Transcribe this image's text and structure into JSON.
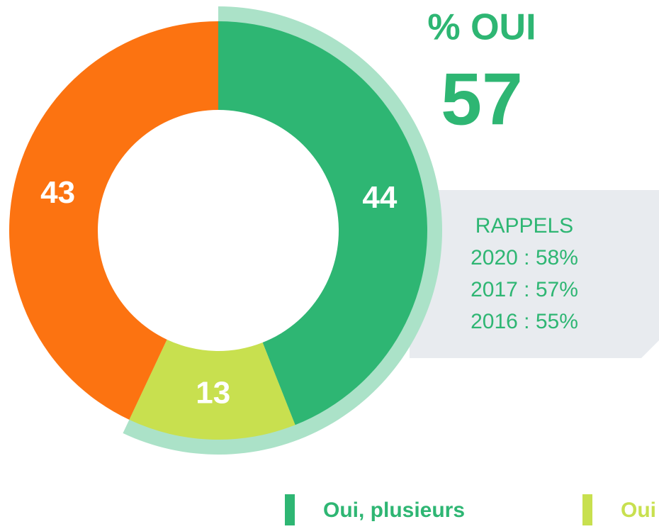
{
  "chart_data": {
    "type": "pie",
    "headline": "% OUI",
    "total": 57,
    "categories": [
      "Oui, plusieurs",
      "Oui",
      null
    ],
    "values": [
      44,
      13,
      43
    ],
    "colors": [
      "#2eb673",
      "#c8e04f",
      "#fc7311"
    ],
    "highlight_color": "#abe2c8",
    "recall": {
      "title": "RAPPELS",
      "items": [
        "2020 : 58%",
        "2017 : 57%",
        "2016 : 55%"
      ]
    }
  }
}
